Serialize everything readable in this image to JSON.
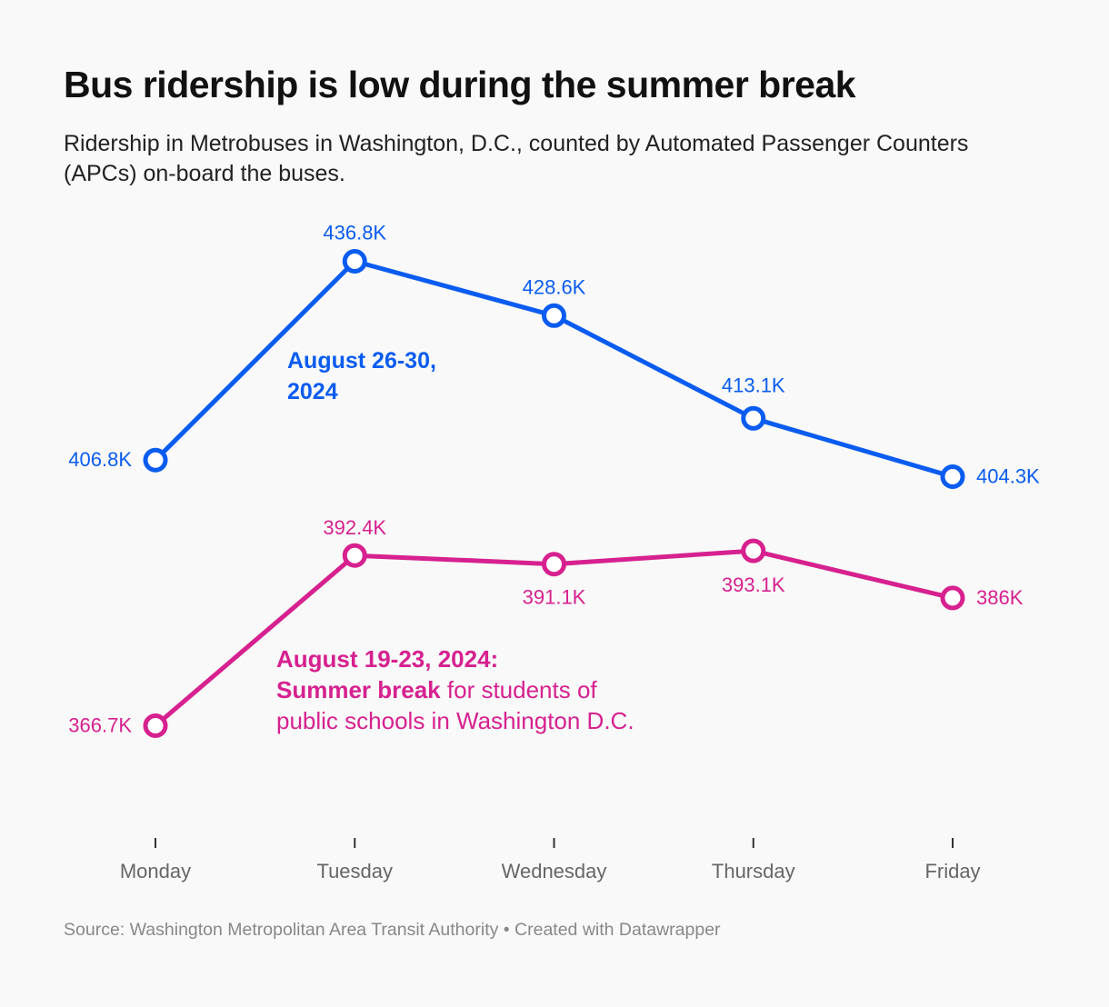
{
  "header": {
    "title": "Bus ridership is low during the summer break",
    "subtitle": "Ridership in Metrobuses in Washington, D.C., counted by Automated Passenger Counters (APCs) on-board the buses."
  },
  "annotations": {
    "blue": "August 26-30, 2024",
    "pink_heading": "August 19-23, 2024:",
    "pink_bold": "Summer break",
    "pink_rest": " for students of public schools in Washington D.C."
  },
  "footer": {
    "source": "Source: Washington Metropolitan Area Transit Authority • Created with Datawrapper"
  },
  "colors": {
    "blue": "#0a5cf0",
    "pink": "#d6218f",
    "axis_text": "#666666"
  },
  "chart_data": {
    "type": "line",
    "title": "Bus ridership is low during the summer break",
    "xlabel": "",
    "ylabel": "",
    "categories": [
      "Monday",
      "Tuesday",
      "Wednesday",
      "Thursday",
      "Friday"
    ],
    "ylim": [
      360,
      440
    ],
    "series": [
      {
        "name": "August 26-30, 2024",
        "color": "#0a5cf0",
        "values": [
          406.8,
          436.8,
          428.6,
          413.1,
          404.3
        ],
        "labels": [
          "406.8K",
          "436.8K",
          "428.6K",
          "413.1K",
          "404.3K"
        ]
      },
      {
        "name": "August 19-23, 2024",
        "color": "#d6218f",
        "values": [
          366.7,
          392.4,
          391.1,
          393.1,
          386
        ],
        "labels": [
          "366.7K",
          "392.4K",
          "391.1K",
          "393.1K",
          "386K"
        ]
      }
    ]
  }
}
